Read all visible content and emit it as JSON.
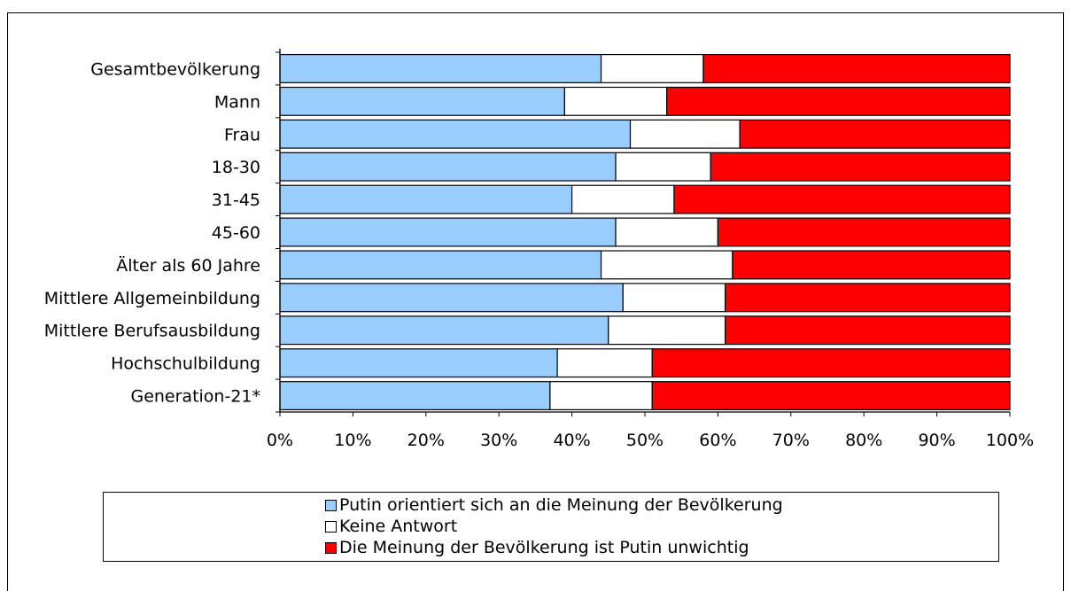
{
  "chart_data": {
    "type": "bar",
    "orientation": "horizontal",
    "stacked": true,
    "normalized": true,
    "categories": [
      "Gesamtbevölkerung",
      "Mann",
      "Frau",
      "18-30",
      "31-45",
      "45-60",
      "Älter als 60 Jahre",
      "Mittlere Allgemeinbildung",
      "Mittlere Berufsausbildung",
      "Hochschulbildung",
      "Generation-21*"
    ],
    "series": [
      {
        "name": "Putin orientiert sich an die Meinung der Bevölkerung",
        "color": "#99ccff",
        "values": [
          44,
          39,
          48,
          46,
          40,
          46,
          44,
          47,
          45,
          38,
          37
        ]
      },
      {
        "name": "Keine Antwort",
        "color": "#ffffff",
        "values": [
          14,
          14,
          15,
          13,
          14,
          14,
          18,
          14,
          16,
          13,
          14
        ]
      },
      {
        "name": "Die Meinung der Bevölkerung ist Putin unwichtig",
        "color": "#ff0000",
        "values": [
          42,
          47,
          37,
          41,
          46,
          40,
          38,
          39,
          39,
          49,
          49
        ]
      }
    ],
    "xticks": [
      "0%",
      "10%",
      "20%",
      "30%",
      "40%",
      "50%",
      "60%",
      "70%",
      "80%",
      "90%",
      "100%"
    ],
    "xlim": [
      0,
      100
    ],
    "title": "",
    "xlabel": "",
    "ylabel": "",
    "grid": false,
    "legend_position": "bottom"
  }
}
